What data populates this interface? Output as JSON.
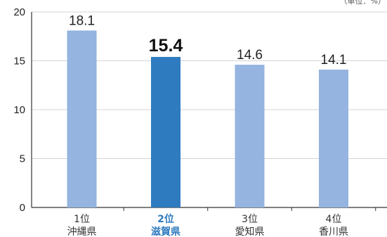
{
  "chart_data": {
    "type": "bar",
    "unit_note": "（単位：%）",
    "categories": [
      {
        "rank": "1位",
        "name": "沖縄県"
      },
      {
        "rank": "2位",
        "name": "滋賀県"
      },
      {
        "rank": "3位",
        "name": "愛知県"
      },
      {
        "rank": "4位",
        "name": "香川県"
      }
    ],
    "values": [
      18.1,
      15.4,
      14.6,
      14.1
    ],
    "value_labels": [
      "18.1",
      "15.4",
      "14.6",
      "14.1"
    ],
    "highlight_index": 1,
    "ylim": [
      0,
      20
    ],
    "yticks": [
      0,
      5,
      10,
      15,
      20
    ],
    "grid": true,
    "colors": {
      "bar": "#95b4df",
      "bar_highlight": "#2f7bbf",
      "grid": "#d4d4d4",
      "axis": "#333333",
      "highlight_text": "#2f7bbf"
    }
  }
}
